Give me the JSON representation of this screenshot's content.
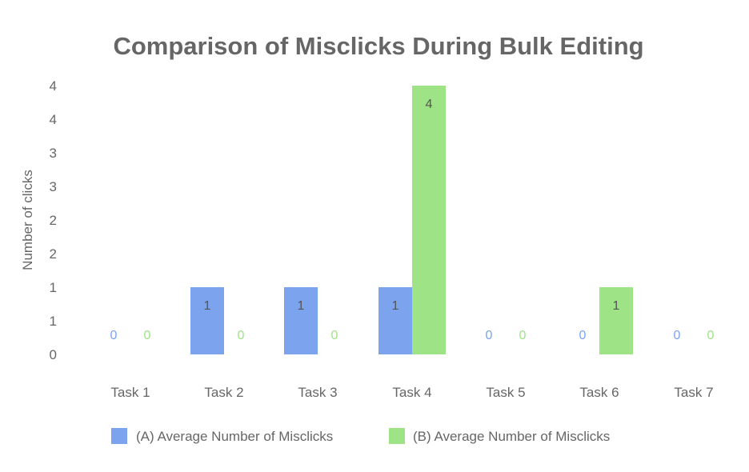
{
  "chart_data": {
    "type": "bar",
    "title": "Comparison of Misclicks During Bulk Editing",
    "xlabel": "",
    "ylabel": "Number of clicks",
    "categories": [
      "Task 1",
      "Task 2",
      "Task 3",
      "Task 4",
      "Task 5",
      "Task 6",
      "Task 7"
    ],
    "series": [
      {
        "name": "(A) Average Number of Misclicks",
        "color": "#7ba3ee",
        "values": [
          0,
          1,
          1,
          1,
          0,
          0,
          0
        ],
        "labels": [
          "0",
          "1",
          "1",
          "1",
          "0",
          "0",
          "0"
        ]
      },
      {
        "name": "(B) Average Number of Misclicks",
        "color": "#9fe387",
        "values": [
          0,
          0,
          0,
          4,
          0,
          1,
          0
        ],
        "labels": [
          "0",
          "0",
          "0",
          "4",
          "0",
          "1",
          "0"
        ]
      }
    ],
    "ylim": [
      0,
      4
    ],
    "yticks": [
      0,
      0.5,
      1,
      1.5,
      2,
      2.5,
      3,
      3.5,
      4
    ],
    "ytick_labels": [
      "0",
      "1",
      "1",
      "2",
      "2",
      "3",
      "3",
      "4",
      "4"
    ],
    "grid": false,
    "legend_position": "bottom",
    "label_colors": {
      "zero_a": "#7ba3ee",
      "zero_b": "#9fe387",
      "inside": "#555555"
    }
  }
}
